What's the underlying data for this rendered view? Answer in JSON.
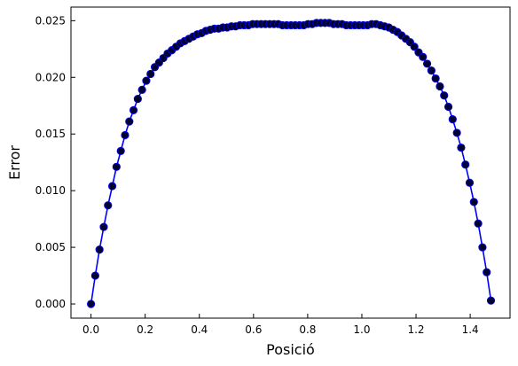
{
  "chart_data": {
    "type": "line",
    "title": "",
    "xlabel": "Posició",
    "ylabel": "Error",
    "xlim": [
      -0.074,
      1.547
    ],
    "ylim": [
      -0.00125,
      0.0262
    ],
    "xticks": [
      "0.0",
      "0.2",
      "0.4",
      "0.6",
      "0.8",
      "1.0",
      "1.2",
      "1.4"
    ],
    "yticks": [
      "0.000",
      "0.005",
      "0.010",
      "0.015",
      "0.020",
      "0.025"
    ],
    "grid": false,
    "line_color": "#0000ff",
    "marker_color": "#000033",
    "series": [
      {
        "x": [
          0.0,
          0.0157,
          0.0314,
          0.0471,
          0.0628,
          0.0785,
          0.0942,
          0.11,
          0.1257,
          0.1414,
          0.1571,
          0.1728,
          0.1885,
          0.2042,
          0.2199,
          0.2356,
          0.2513,
          0.267,
          0.2827,
          0.2985,
          0.3142,
          0.3299,
          0.3456,
          0.3613,
          0.377,
          0.3927,
          0.4084,
          0.4241,
          0.4398,
          0.4555,
          0.4712,
          0.487,
          0.5027,
          0.5184,
          0.5341,
          0.5498,
          0.5655,
          0.5812,
          0.5969,
          0.6126,
          0.6283,
          0.644,
          0.6597,
          0.6755,
          0.6912,
          0.7069,
          0.7226,
          0.7383,
          0.754,
          0.7697,
          0.7854,
          0.8011,
          0.8168,
          0.8325,
          0.8482,
          0.864,
          0.8797,
          0.8954,
          0.9111,
          0.9268,
          0.9425,
          0.9582,
          0.9739,
          0.9896,
          1.0053,
          1.021,
          1.0367,
          1.0525,
          1.0682,
          1.0839,
          1.0996,
          1.1153,
          1.131,
          1.1467,
          1.1624,
          1.1781,
          1.1938,
          1.2095,
          1.2252,
          1.241,
          1.2567,
          1.2724,
          1.2881,
          1.3038,
          1.3195,
          1.3352,
          1.3509,
          1.3666,
          1.3823,
          1.398,
          1.4137,
          1.4295,
          1.4452,
          1.4609,
          1.4766
        ],
        "y": [
          0.0,
          0.0025,
          0.0048,
          0.0068,
          0.0087,
          0.0104,
          0.0121,
          0.0135,
          0.0149,
          0.0161,
          0.0171,
          0.0181,
          0.0189,
          0.0197,
          0.0203,
          0.0209,
          0.0213,
          0.0217,
          0.0221,
          0.0224,
          0.0227,
          0.023,
          0.0232,
          0.0234,
          0.0236,
          0.0238,
          0.0239,
          0.0241,
          0.0242,
          0.0243,
          0.0243,
          0.0244,
          0.0244,
          0.0245,
          0.0245,
          0.0246,
          0.0246,
          0.0246,
          0.0247,
          0.0247,
          0.0247,
          0.0247,
          0.0247,
          0.0247,
          0.0247,
          0.0246,
          0.0246,
          0.0246,
          0.0246,
          0.0246,
          0.0246,
          0.0247,
          0.0247,
          0.0248,
          0.0248,
          0.0248,
          0.0248,
          0.0247,
          0.0247,
          0.0247,
          0.0246,
          0.0246,
          0.0246,
          0.0246,
          0.0246,
          0.0246,
          0.0247,
          0.0247,
          0.0246,
          0.0245,
          0.0244,
          0.0242,
          0.024,
          0.0237,
          0.0234,
          0.0231,
          0.0227,
          0.0222,
          0.0218,
          0.0212,
          0.0206,
          0.0199,
          0.0192,
          0.0184,
          0.0174,
          0.0163,
          0.0151,
          0.0138,
          0.0123,
          0.0107,
          0.009,
          0.0071,
          0.005,
          0.0028,
          0.0003
        ]
      }
    ]
  }
}
